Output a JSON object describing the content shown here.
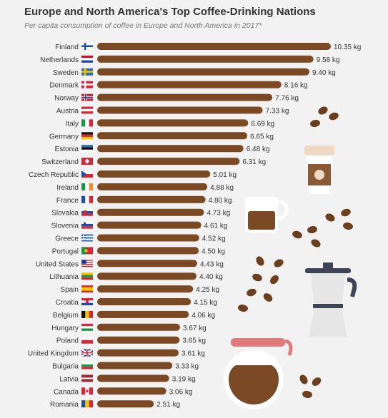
{
  "chart_data": {
    "type": "bar",
    "orientation": "horizontal",
    "title": "Europe and North America's Top Coffee-Drinking Nations",
    "subtitle": "Per capita consumption of coffee in Europe and North America in 2017*",
    "value_unit": "kg",
    "bar_color": "#7b4a24",
    "label_color": "#333333",
    "categories": [
      "Finland",
      "Netherlands",
      "Sweden",
      "Denmark",
      "Norway",
      "Austria",
      "Italy",
      "Germany",
      "Estonia",
      "Switzerland",
      "Czech Republic",
      "Ireland",
      "France",
      "Slovakia",
      "Slovenia",
      "Greece",
      "Portugal",
      "United States",
      "Lithuania",
      "Spain",
      "Croatia",
      "Belgium",
      "Hungary",
      "Poland",
      "United Kingdom",
      "Bulgaria",
      "Latvia",
      "Canada",
      "Romania"
    ],
    "values": [
      10.35,
      9.58,
      9.4,
      8.16,
      7.76,
      7.33,
      6.69,
      6.65,
      6.48,
      6.31,
      5.01,
      4.88,
      4.8,
      4.73,
      4.61,
      4.52,
      4.5,
      4.43,
      4.4,
      4.25,
      4.15,
      4.06,
      3.67,
      3.65,
      3.61,
      3.33,
      3.19,
      3.06,
      2.51
    ],
    "value_labels": [
      "10.35 kg",
      "9.58 kg",
      "9.40 kg",
      "8.16 kg",
      "7.76 kg",
      "7.33 kg",
      "6.69 kg",
      "6.65 kg",
      "6.48 kg",
      "6.31 kg",
      "5.01 kg",
      "4.88 kg",
      "4.80 kg",
      "4.73 kg",
      "4.61 kg",
      "4.52 kg",
      "4.50 kg",
      "4.43 kg",
      "4.40 kg",
      "4.25 kg",
      "4.15 kg",
      "4.06 kg",
      "3.67 kg",
      "3.65 kg",
      "3.61 kg",
      "3.33 kg",
      "3.19 kg",
      "3.06 kg",
      "2.51 kg"
    ],
    "flags": [
      "finland-flag-icon",
      "netherlands-flag-icon",
      "sweden-flag-icon",
      "denmark-flag-icon",
      "norway-flag-icon",
      "austria-flag-icon",
      "italy-flag-icon",
      "germany-flag-icon",
      "estonia-flag-icon",
      "switzerland-flag-icon",
      "czech-republic-flag-icon",
      "ireland-flag-icon",
      "france-flag-icon",
      "slovakia-flag-icon",
      "slovenia-flag-icon",
      "greece-flag-icon",
      "portugal-flag-icon",
      "united-states-flag-icon",
      "lithuania-flag-icon",
      "spain-flag-icon",
      "croatia-flag-icon",
      "belgium-flag-icon",
      "hungary-flag-icon",
      "poland-flag-icon",
      "united-kingdom-flag-icon",
      "bulgaria-flag-icon",
      "latvia-flag-icon",
      "canada-flag-icon",
      "romania-flag-icon"
    ],
    "xlim": [
      0,
      10.35
    ],
    "grid": false,
    "legend": "none"
  },
  "decorations": [
    "coffee-beans-icon",
    "takeaway-cup-icon",
    "coffee-mug-icon",
    "moka-pot-icon",
    "coffee-carafe-icon"
  ]
}
